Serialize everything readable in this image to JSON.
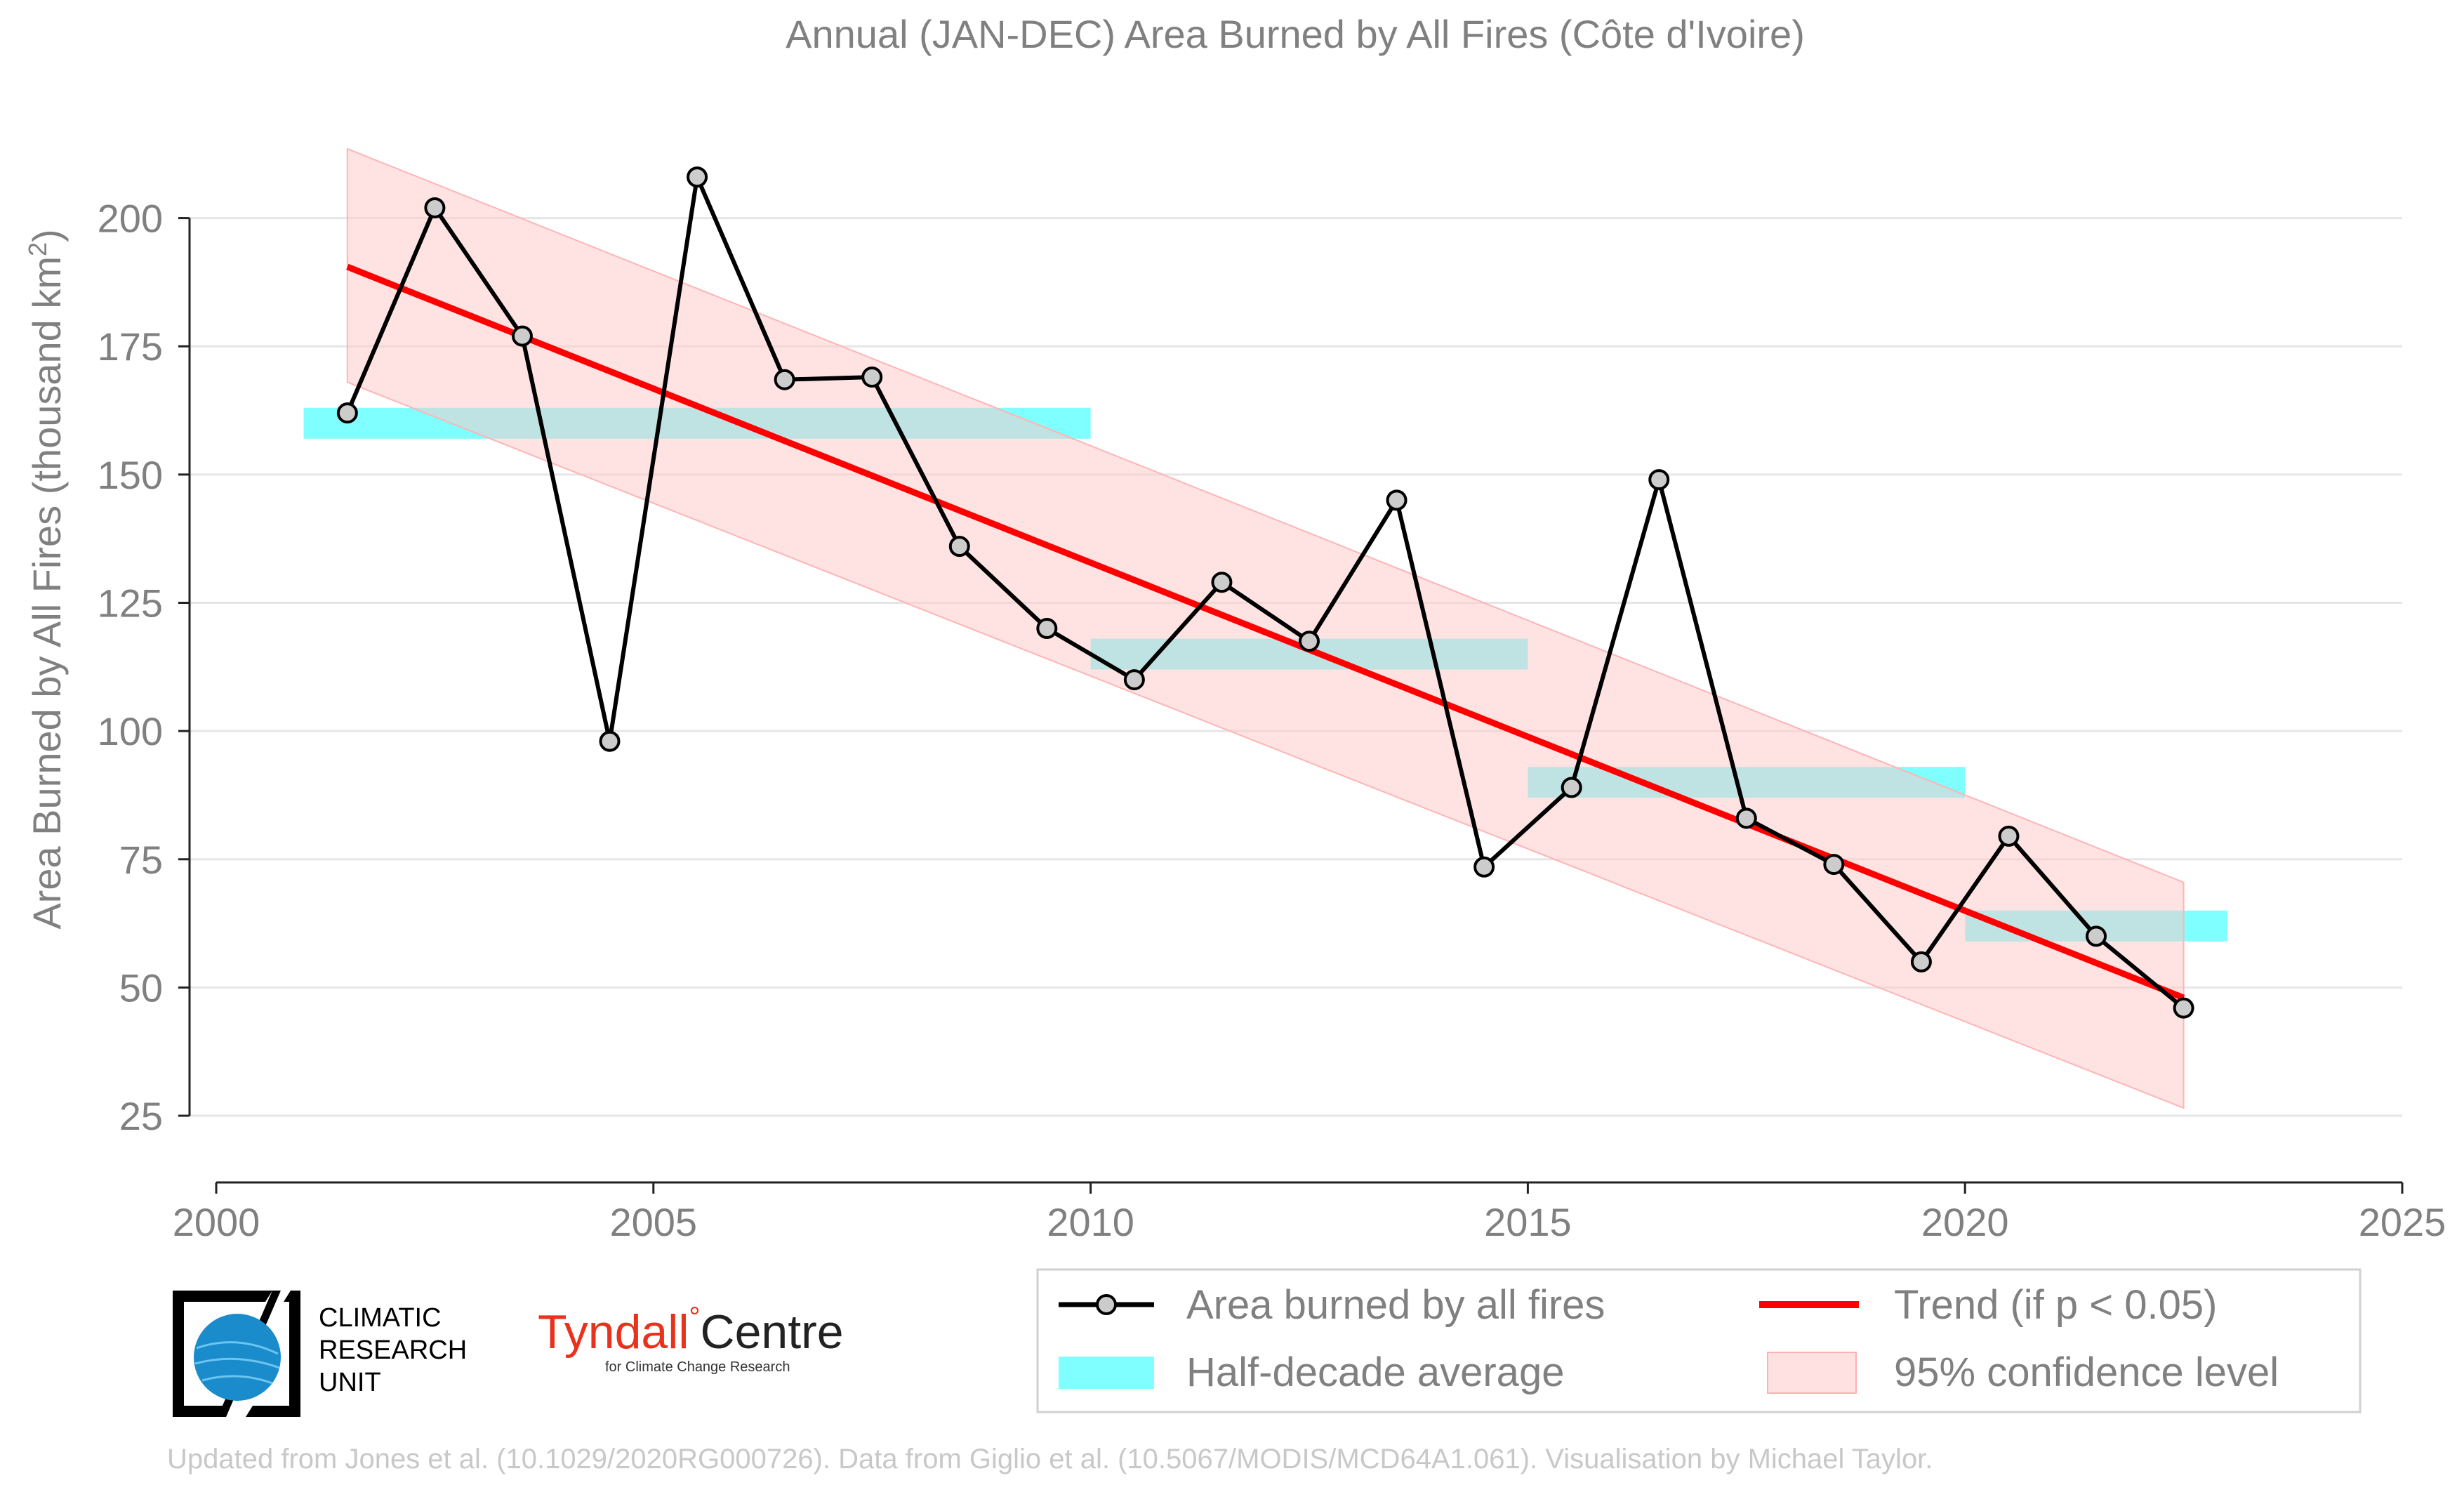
{
  "chart_data": {
    "type": "line",
    "title": "Annual (JAN-DEC) Area Burned by All Fires (Côte d'Ivoire)",
    "ylabel_main": "Area Burned by All Fires (thousand km",
    "ylabel_sup": "2",
    "ylabel_close": ")",
    "xlim": [
      2000,
      2025
    ],
    "ylim": [
      12,
      215
    ],
    "xticks": [
      2000,
      2005,
      2010,
      2015,
      2020,
      2025
    ],
    "yticks": [
      25,
      50,
      75,
      100,
      125,
      150,
      175,
      200
    ],
    "grid": "horizontal",
    "series": [
      {
        "name": "Area burned by all fires",
        "color": "#000000",
        "x": [
          2001.5,
          2002.5,
          2003.5,
          2004.5,
          2005.5,
          2006.5,
          2007.5,
          2008.5,
          2009.5,
          2010.5,
          2011.5,
          2012.5,
          2013.5,
          2014.5,
          2015.5,
          2016.5,
          2017.5,
          2018.5,
          2019.5,
          2020.5,
          2021.5,
          2022.5
        ],
        "values": [
          162,
          202,
          177,
          98,
          208,
          168.5,
          169,
          136,
          120,
          110,
          129,
          117.5,
          145,
          73.5,
          89,
          149,
          83,
          74,
          55,
          79.5,
          60,
          46
        ]
      }
    ],
    "half_decade_averages": {
      "name": "Half-decade average",
      "color": "#00ffff",
      "bands": [
        {
          "x0": 2001,
          "x1": 2010,
          "value": 160
        },
        {
          "x0": 2010,
          "x1": 2015,
          "value": 115
        },
        {
          "x0": 2015,
          "x1": 2020,
          "value": 90
        },
        {
          "x0": 2020,
          "x1": 2023,
          "value": 62
        }
      ]
    },
    "trend": {
      "name": "Trend (if p < 0.05)",
      "color": "#ff0000",
      "x": [
        2001.5,
        2022.5
      ],
      "values": [
        190.5,
        48
      ]
    },
    "confidence": {
      "name": "95% confidence level",
      "color": "#ffc8c8",
      "x": [
        2001.5,
        2022.5
      ],
      "upper": [
        213.5,
        70.5
      ],
      "lower": [
        168,
        26.5
      ]
    },
    "legend": {
      "placement": "bottom-right",
      "entries": [
        "Area burned by all fires",
        "Trend (if p < 0.05)",
        "Half-decade average",
        "95% confidence level"
      ]
    }
  },
  "logos": {
    "cru_line1": "CLIMATIC",
    "cru_line2": "RESEARCH",
    "cru_line3": "UNIT",
    "tyndall_name": "Tyndall",
    "tyndall_degree": "°",
    "tyndall_centre": "Centre",
    "tyndall_sub": "for Climate Change Research"
  },
  "credits": "Updated from Jones et al. (10.1029/2020RG000726). Data from Giglio et al. (10.5067/MODIS/MCD64A1.061). Visualisation by Michael Taylor."
}
